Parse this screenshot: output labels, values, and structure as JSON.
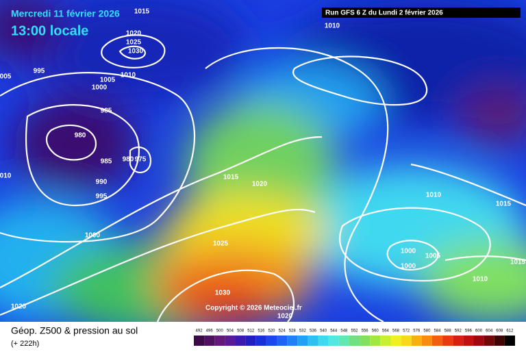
{
  "header": {
    "date": "Mercredi 11 février 2026",
    "time": "13:00 locale",
    "run": "Run GFS 6 Z du Lundi 2 février 2026"
  },
  "footer": {
    "title": "Géop. Z500 & pression au sol",
    "lead": "(+ 222h)",
    "copyright": "Copyright © 2026 Meteociel.fr"
  },
  "isobar_labels": [
    "1015",
    "1020",
    "1025",
    "1030",
    "1010",
    "995",
    "005",
    "1005",
    "1010",
    "1000",
    "985",
    "980",
    "985",
    "980",
    "975",
    "990",
    "995",
    "010",
    "1015",
    "1020",
    "1010",
    "1015",
    "1000",
    "1025",
    "1000",
    "1005",
    "1000",
    "1015",
    "1010",
    "1030",
    "1020",
    "1020"
  ],
  "scale": {
    "labels": [
      492,
      496,
      500,
      504,
      508,
      512,
      516,
      520,
      524,
      528,
      532,
      536,
      540,
      544,
      548,
      552,
      556,
      560,
      564,
      568,
      572,
      576,
      580,
      584,
      588,
      592,
      596,
      600,
      604,
      608,
      612
    ]
  }
}
